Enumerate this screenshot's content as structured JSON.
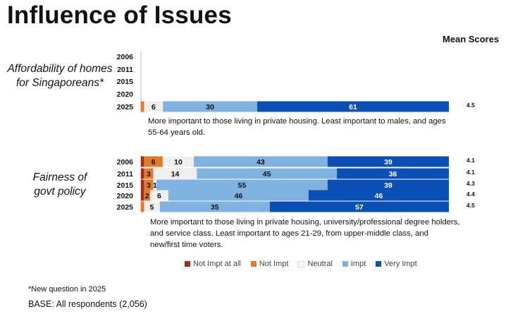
{
  "title": "Influence of Issues",
  "mean_header": "Mean Scores",
  "footnote": "*New question in 2025",
  "base": "BASE: All respondents (2,056)",
  "colors": {
    "Not Impt at all": "#a52a1a",
    "Not Impt": "#e07a2c",
    "Neutral": "#ffffff",
    "Impt": "#7fb2e0",
    "Very Impt": "#0a4fb5"
  },
  "chart_data": {
    "type": "bar",
    "stacked": true,
    "orientation": "horizontal",
    "legend": [
      "Not Impt at all",
      "Not Impt",
      "Neutral",
      "Impt",
      "Very Impt"
    ],
    "legend_position": "bottom",
    "groups": [
      {
        "label": "Affordability of homes for Singaporeans*",
        "years": [
          "2006",
          "2011",
          "2015",
          "2020",
          "2025"
        ],
        "rows": [
          {
            "year": "2006",
            "values": null,
            "mean": ""
          },
          {
            "year": "2011",
            "values": null,
            "mean": ""
          },
          {
            "year": "2015",
            "values": null,
            "mean": ""
          },
          {
            "year": "2020",
            "values": null,
            "mean": ""
          },
          {
            "year": "2025",
            "values": [
              0,
              1,
              6,
              30,
              61
            ],
            "labels": [
              "",
              "",
              "6",
              "30",
              "61"
            ],
            "mean": "4.5"
          }
        ],
        "note": "More important to those living in private housing. Least important to males, and ages 55-64 years old."
      },
      {
        "label": "Fairness of govt policy",
        "years": [
          "2006",
          "2011",
          "2015",
          "2020",
          "2025"
        ],
        "rows": [
          {
            "year": "2006",
            "values": [
              1,
              6,
              10,
              43,
              39
            ],
            "labels": [
              "",
              "6",
              "10",
              "43",
              "39"
            ],
            "mean": "4.1"
          },
          {
            "year": "2011",
            "values": [
              1,
              3,
              14,
              45,
              36
            ],
            "labels": [
              "",
              "3",
              "14",
              "45",
              "36"
            ],
            "mean": "4.1"
          },
          {
            "year": "2015",
            "values": [
              1,
              3,
              1,
              55,
              39
            ],
            "labels": [
              "",
              "3",
              "1",
              "55",
              "39"
            ],
            "mean": "4.3"
          },
          {
            "year": "2020",
            "values": [
              1,
              2,
              6,
              46,
              46
            ],
            "labels": [
              "",
              "2",
              "6",
              "46",
              "46"
            ],
            "mean": "4.4"
          },
          {
            "year": "2025",
            "values": [
              0,
              1,
              5,
              35,
              57
            ],
            "labels": [
              "",
              "",
              "5",
              "35",
              "57"
            ],
            "mean": "4.5"
          }
        ],
        "note": "More important to those living in private housing, university/professional degree holders, and service class. Least important to ages 21-29, from upper-middle class, and new/first time voters."
      }
    ]
  }
}
